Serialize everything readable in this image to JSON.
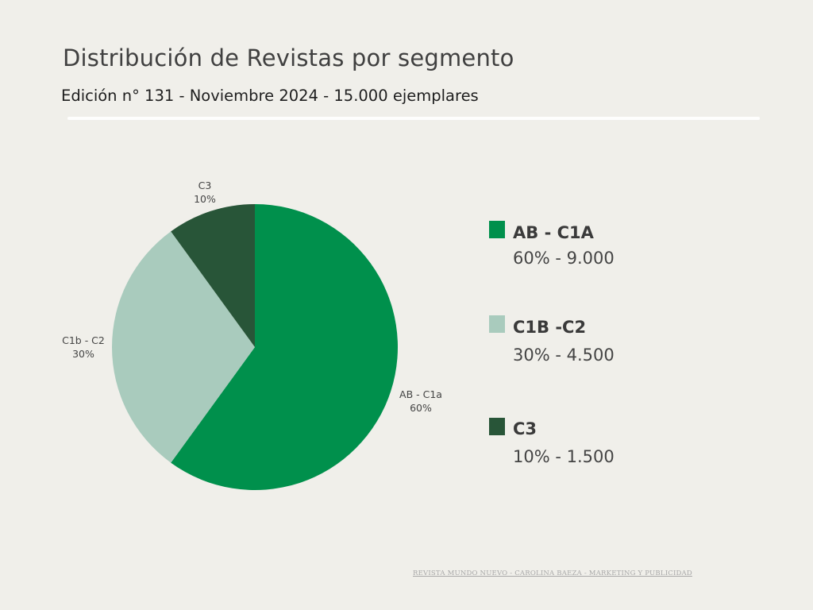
{
  "header": {
    "title": "Distribución de Revistas por segmento",
    "subtitle": "Edición n° 131 - Noviembre 2024 - 15.000 ejemplares"
  },
  "chart_data": {
    "type": "pie",
    "title": "Distribución de Revistas por segmento",
    "slices": [
      {
        "label": "AB - C1a",
        "percent": 60,
        "pct_text": "60%",
        "color": "#00904c"
      },
      {
        "label": "C1b - C2",
        "percent": 30,
        "pct_text": "30%",
        "color": "#a9cbbd"
      },
      {
        "label": "C3",
        "percent": 10,
        "pct_text": "10%",
        "color": "#285538"
      }
    ]
  },
  "legend": {
    "items": [
      {
        "name": "AB - C1A",
        "value": "60% - 9.000",
        "color": "#00904c"
      },
      {
        "name": "C1B -C2",
        "value": "30% - 4.500",
        "color": "#a9cbbd"
      },
      {
        "name": "C3",
        "value": "10% - 1.500",
        "color": "#285538"
      }
    ]
  },
  "footer": {
    "text": "REVISTA MUNDO NUEVO - CAROLINA BAEZA - MARKETING Y PUBLICIDAD"
  }
}
